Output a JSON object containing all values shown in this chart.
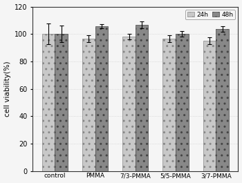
{
  "categories": [
    "control",
    "PMMA",
    "7/3-PMMA",
    "5/5-PMMA",
    "3/7-PMMA"
  ],
  "values_24h": [
    100.0,
    96.5,
    98.0,
    96.5,
    95.0
  ],
  "values_48h": [
    100.0,
    105.5,
    106.5,
    100.0,
    103.5
  ],
  "errors_24h": [
    7.5,
    2.5,
    2.0,
    2.5,
    2.5
  ],
  "errors_48h": [
    6.0,
    1.5,
    2.5,
    2.0,
    2.0
  ],
  "color_24h": "#c8c8c8",
  "color_48h": "#888888",
  "hatch_24h": "..",
  "hatch_48h": "..",
  "ylabel": "cell viability(%)",
  "ylim": [
    0,
    120
  ],
  "yticks": [
    0,
    20,
    40,
    60,
    80,
    100,
    120
  ],
  "bar_width": 0.32,
  "legend_labels": [
    "24h",
    "48h"
  ],
  "background_color": "#f5f5f5",
  "grid_color": "#d0d0d0",
  "edgecolor_24h": "#888888",
  "edgecolor_48h": "#444444"
}
